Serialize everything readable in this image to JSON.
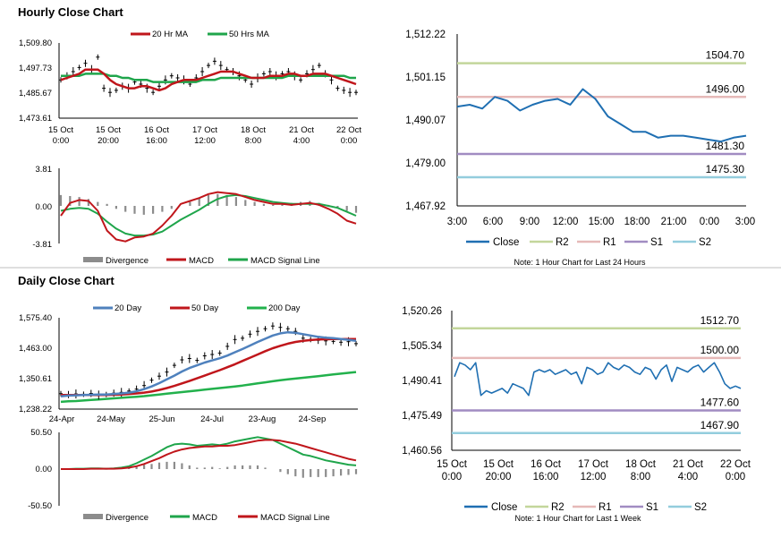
{
  "colors": {
    "ma_short": "#c0161b",
    "ma_long": "#1fa54b",
    "ma_200": "#22b14c",
    "blue": "#4f81bd",
    "close": "#1f6fb2",
    "r2": "#c3d69b",
    "r1": "#e6b9b8",
    "s1": "#a18cc2",
    "s2": "#93cddd",
    "divergence": "#8c8c8c"
  },
  "sections": {
    "hourly_title": "Hourly Close Chart",
    "daily_title": "Daily Close Chart"
  },
  "chart_data": [
    {
      "id": "hourly_price",
      "type": "line",
      "title": "Hourly Close Chart",
      "legend": [
        "20 Hr MA",
        "50 Hrs MA"
      ],
      "yticks": [
        "1,509.80",
        "1,497.73",
        "1,485.67",
        "1,473.61"
      ],
      "ylim": [
        1473.61,
        1509.8
      ],
      "xticks": [
        [
          "15 Oct",
          "0:00"
        ],
        [
          "15 Oct",
          "20:00"
        ],
        [
          "16 Oct",
          "16:00"
        ],
        [
          "17 Oct",
          "12:00"
        ],
        [
          "18 Oct",
          "8:00"
        ],
        [
          "21 Oct",
          "4:00"
        ],
        [
          "22 Oct",
          "0:00"
        ]
      ],
      "series": [
        {
          "name": "Price",
          "values": [
            1492,
            1494,
            1496,
            1498,
            1500,
            1497,
            1503,
            1488,
            1486,
            1487,
            1489,
            1488,
            1491,
            1490,
            1488,
            1486,
            1489,
            1492,
            1494,
            1493,
            1492,
            1490,
            1493,
            1496,
            1499,
            1501,
            1499,
            1497,
            1496,
            1494,
            1492,
            1490,
            1493,
            1495,
            1496,
            1494,
            1495,
            1496,
            1494,
            1492,
            1495,
            1497,
            1499,
            1495,
            1492,
            1488,
            1487,
            1486,
            1486
          ]
        },
        {
          "name": "20 Hr MA",
          "values": [
            1492,
            1493,
            1494,
            1495,
            1497,
            1497,
            1497,
            1495,
            1492,
            1490,
            1489,
            1488,
            1488,
            1489,
            1489,
            1488,
            1487,
            1488,
            1490,
            1491,
            1492,
            1492,
            1492,
            1493,
            1494,
            1495,
            1496,
            1496,
            1496,
            1495,
            1494,
            1493,
            1493,
            1493,
            1494,
            1494,
            1494,
            1495,
            1495,
            1494,
            1494,
            1495,
            1495,
            1495,
            1494,
            1493,
            1492,
            1491,
            1490
          ]
        },
        {
          "name": "50 Hrs MA",
          "values": [
            1494,
            1494,
            1494,
            1494,
            1495,
            1495,
            1495,
            1495,
            1494,
            1494,
            1493,
            1493,
            1492,
            1492,
            1492,
            1491,
            1491,
            1491,
            1491,
            1491,
            1491,
            1491,
            1491,
            1492,
            1492,
            1492,
            1493,
            1493,
            1493,
            1493,
            1493,
            1493,
            1493,
            1493,
            1493,
            1493,
            1493,
            1494,
            1494,
            1494,
            1494,
            1494,
            1494,
            1494,
            1494,
            1494,
            1494,
            1493,
            1493
          ]
        }
      ]
    },
    {
      "id": "hourly_macd",
      "type": "line",
      "legend": [
        "Divergence",
        "MACD",
        "MACD Signal Line"
      ],
      "yticks": [
        "3.81",
        "0.00",
        "-3.81"
      ],
      "ylim": [
        -3.81,
        3.81
      ],
      "series": [
        {
          "name": "MACD",
          "values": [
            -1,
            0.3,
            0.6,
            0.5,
            -0.5,
            -2.5,
            -3.4,
            -3.6,
            -3.2,
            -3.1,
            -2.8,
            -2.0,
            -1.0,
            0.2,
            0.5,
            0.8,
            1.2,
            1.4,
            1.3,
            1.2,
            0.9,
            0.6,
            0.4,
            0.2,
            0.2,
            0.1,
            0.2,
            0.3,
            0.1,
            -0.3,
            -0.8,
            -1.5,
            -1.8
          ]
        },
        {
          "name": "MACD Signal Line",
          "values": [
            -0.5,
            -0.3,
            -0.2,
            -0.3,
            -0.8,
            -1.6,
            -2.3,
            -2.8,
            -3.0,
            -3.0,
            -2.9,
            -2.6,
            -2.0,
            -1.4,
            -0.9,
            -0.4,
            0.2,
            0.7,
            1.0,
            1.1,
            1.0,
            0.8,
            0.6,
            0.4,
            0.3,
            0.2,
            0.2,
            0.2,
            0.2,
            0.0,
            -0.2,
            -0.6,
            -1.0
          ]
        },
        {
          "name": "Divergence",
          "values": [
            1.1,
            1.0,
            0.9,
            0.7,
            0.4,
            0.2,
            -0.3,
            -0.6,
            -0.8,
            -0.9,
            -0.8,
            -0.6,
            -0.3,
            0,
            0.4,
            0.8,
            1.1,
            1.2,
            1.1,
            0.9,
            0.6,
            0.4,
            0.2,
            0.1,
            0.2,
            0.3,
            0.4,
            0.5,
            0.3,
            0.1,
            -0.2,
            -0.5,
            -0.7
          ]
        }
      ]
    },
    {
      "id": "hourly_close",
      "type": "line",
      "legend": [
        "Close",
        "R2",
        "R1",
        "S1",
        "S2"
      ],
      "yticks": [
        "1,512.22",
        "1,501.15",
        "1,490.07",
        "1,479.00",
        "1,467.92"
      ],
      "ylim": [
        1467.92,
        1512.22
      ],
      "xticks": [
        "3:00",
        "6:00",
        "9:00",
        "12:00",
        "15:00",
        "18:00",
        "21:00",
        "0:00",
        "3:00"
      ],
      "levels": [
        {
          "name": "R2",
          "value": 1504.7,
          "label": "1504.70"
        },
        {
          "name": "R1",
          "value": 1496.0,
          "label": "1496.00"
        },
        {
          "name": "S1",
          "value": 1481.3,
          "label": "1481.30"
        },
        {
          "name": "S2",
          "value": 1475.3,
          "label": "1475.30"
        }
      ],
      "note": "Note: 1 Hour Chart for Last 24 Hours",
      "values": [
        1493.5,
        1494,
        1493,
        1496,
        1495,
        1492.5,
        1494,
        1495,
        1495.5,
        1494,
        1498,
        1495.5,
        1491,
        1489,
        1487,
        1487,
        1485.5,
        1486,
        1486,
        1485.5,
        1485,
        1484.5,
        1485.5,
        1486
      ]
    },
    {
      "id": "daily_price",
      "type": "line",
      "title": "Daily Close Chart",
      "legend": [
        "20 Day",
        "50 Day",
        "200 Day"
      ],
      "yticks": [
        "1,575.40",
        "1,463.00",
        "1,350.61",
        "1,238.22"
      ],
      "ylim": [
        1238.22,
        1575.4
      ],
      "xticks": [
        "24-Apr",
        "24-May",
        "25-Jun",
        "24-Jul",
        "23-Aug",
        "24-Sep"
      ],
      "series": [
        {
          "name": "Price",
          "values": [
            1295,
            1292,
            1294,
            1293,
            1296,
            1290,
            1292,
            1297,
            1300,
            1305,
            1312,
            1325,
            1345,
            1360,
            1375,
            1400,
            1420,
            1425,
            1418,
            1435,
            1440,
            1445,
            1470,
            1495,
            1500,
            1515,
            1525,
            1535,
            1545,
            1540,
            1535,
            1525,
            1500,
            1495,
            1492,
            1490,
            1488,
            1485,
            1487,
            1480
          ]
        },
        {
          "name": "20 Day",
          "values": [
            1285,
            1288,
            1289,
            1290,
            1291,
            1292,
            1292,
            1294,
            1296,
            1299,
            1304,
            1312,
            1322,
            1334,
            1348,
            1362,
            1377,
            1390,
            1400,
            1410,
            1418,
            1426,
            1436,
            1448,
            1460,
            1473,
            1486,
            1498,
            1510,
            1518,
            1522,
            1520,
            1515,
            1510,
            1505,
            1502,
            1500,
            1497,
            1494,
            1490
          ]
        },
        {
          "name": "50 Day",
          "values": [
            1290,
            1290,
            1290,
            1290,
            1290,
            1290,
            1290,
            1291,
            1292,
            1294,
            1296,
            1299,
            1303,
            1309,
            1316,
            1324,
            1333,
            1342,
            1352,
            1362,
            1372,
            1382,
            1393,
            1404,
            1416,
            1428,
            1440,
            1452,
            1463,
            1472,
            1480,
            1486,
            1490,
            1493,
            1495,
            1496,
            1497,
            1497,
            1497,
            1497
          ]
        },
        {
          "name": "200 Day",
          "values": [
            1265,
            1267,
            1268,
            1270,
            1272,
            1274,
            1276,
            1278,
            1280,
            1282,
            1284,
            1286,
            1289,
            1292,
            1295,
            1298,
            1301,
            1304,
            1307,
            1310,
            1313,
            1316,
            1319,
            1322,
            1325,
            1329,
            1333,
            1337,
            1341,
            1345,
            1348,
            1351,
            1354,
            1357,
            1360,
            1363,
            1366,
            1369,
            1372,
            1375
          ]
        }
      ]
    },
    {
      "id": "daily_macd",
      "type": "line",
      "legend": [
        "Divergence",
        "MACD",
        "MACD Signal Line"
      ],
      "yticks": [
        "50.50",
        "0.00",
        "-50.50"
      ],
      "ylim": [
        -50.5,
        50.5
      ],
      "series": [
        {
          "name": "MACD",
          "values": [
            0,
            0,
            0.5,
            0.5,
            1,
            1,
            0.5,
            1,
            2,
            4,
            8,
            13,
            18,
            24,
            30,
            34,
            35,
            34,
            32,
            33,
            34,
            33,
            35,
            38,
            40,
            42,
            44,
            42,
            40,
            35,
            30,
            25,
            20,
            18,
            15,
            12,
            10,
            8,
            6,
            5
          ]
        },
        {
          "name": "MACD Signal Line",
          "values": [
            0,
            0,
            0,
            0,
            0.5,
            0.5,
            0.5,
            0.5,
            1,
            2,
            4,
            7,
            11,
            15,
            20,
            24,
            27,
            29,
            30,
            31,
            31,
            32,
            32,
            33,
            35,
            37,
            39,
            40,
            40,
            39,
            37,
            35,
            32,
            29,
            26,
            23,
            20,
            17,
            14,
            12
          ]
        },
        {
          "name": "Divergence",
          "values": [
            0,
            0.2,
            0.3,
            0.5,
            0.6,
            0.4,
            0.2,
            0.4,
            0.8,
            2,
            4,
            6,
            7,
            9,
            10,
            10,
            8,
            5,
            2,
            2,
            3,
            1,
            3,
            5,
            5,
            5,
            5,
            2,
            0,
            -4,
            -7,
            -10,
            -12,
            -11,
            -11,
            -11,
            -10,
            -9,
            -8,
            -7
          ]
        }
      ]
    },
    {
      "id": "daily_close",
      "type": "line",
      "legend": [
        "Close",
        "R2",
        "R1",
        "S1",
        "S2"
      ],
      "yticks": [
        "1,520.26",
        "1,505.34",
        "1,490.41",
        "1,475.49",
        "1,460.56"
      ],
      "ylim": [
        1460.56,
        1520.26
      ],
      "xticks": [
        [
          "15 Oct",
          "0:00"
        ],
        [
          "15 Oct",
          "20:00"
        ],
        [
          "16 Oct",
          "16:00"
        ],
        [
          "17 Oct",
          "12:00"
        ],
        [
          "18 Oct",
          "8:00"
        ],
        [
          "21 Oct",
          "4:00"
        ],
        [
          "22 Oct",
          "0:00"
        ]
      ],
      "levels": [
        {
          "name": "R2",
          "value": 1512.7,
          "label": "1512.70"
        },
        {
          "name": "R1",
          "value": 1500.0,
          "label": "1500.00"
        },
        {
          "name": "S1",
          "value": 1477.6,
          "label": "1477.60"
        },
        {
          "name": "S2",
          "value": 1467.9,
          "label": "1467.90"
        }
      ],
      "note": "Note: 1 Hour Chart for Last 1 Week",
      "values": [
        1492,
        1498,
        1497,
        1495,
        1498,
        1484,
        1486,
        1485,
        1486,
        1487,
        1485,
        1489,
        1488,
        1487,
        1484,
        1494,
        1495,
        1494,
        1495,
        1493,
        1494,
        1495,
        1493,
        1494,
        1489,
        1496,
        1495,
        1493,
        1494,
        1498,
        1496,
        1495,
        1497,
        1496,
        1494,
        1493,
        1496,
        1495,
        1491,
        1495,
        1497,
        1490,
        1496,
        1495,
        1494,
        1496,
        1497,
        1494,
        1496,
        1498,
        1494,
        1489,
        1487,
        1488,
        1487
      ]
    }
  ]
}
